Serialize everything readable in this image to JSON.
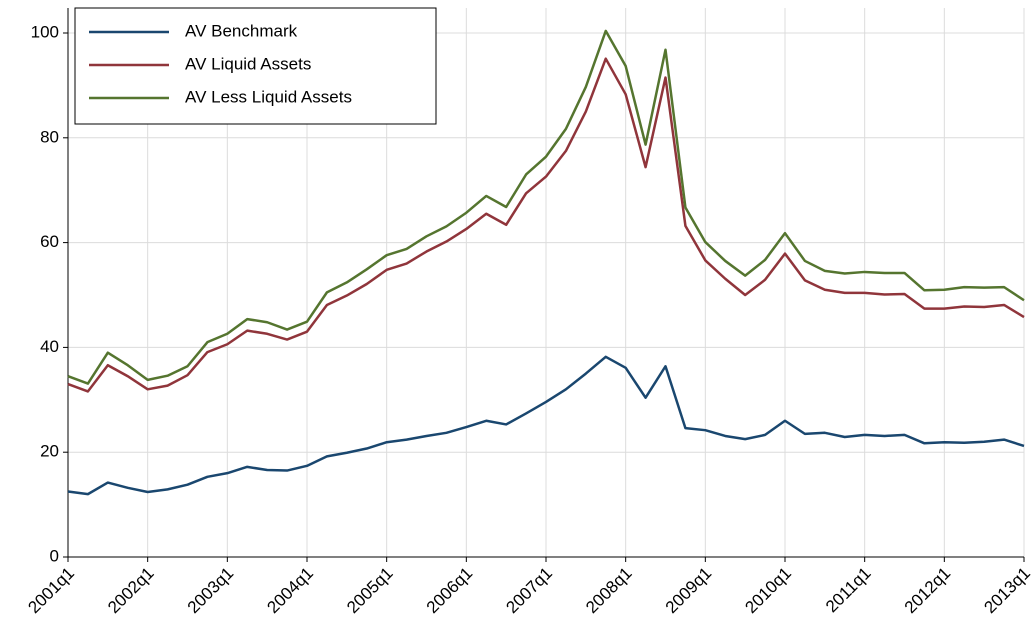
{
  "chart_data": {
    "type": "line",
    "categories": [
      "2001q1",
      null,
      null,
      null,
      "2002q1",
      null,
      null,
      null,
      "2003q1",
      null,
      null,
      null,
      "2004q1",
      null,
      null,
      null,
      "2005q1",
      null,
      null,
      null,
      "2006q1",
      null,
      null,
      null,
      "2007q1",
      null,
      null,
      null,
      "2008q1",
      null,
      null,
      null,
      "2009q1",
      null,
      null,
      null,
      "2010q1",
      null,
      null,
      null,
      "2011q1",
      null,
      null,
      null,
      "2012q1",
      null,
      null,
      null,
      "2013q1"
    ],
    "series": [
      {
        "name": "AV Benchmark",
        "color": "#1a476f",
        "values": [
          12.5,
          12.0,
          14.2,
          13.2,
          12.4,
          12.9,
          13.8,
          15.3,
          16.0,
          17.2,
          16.6,
          16.5,
          17.4,
          19.2,
          19.9,
          20.7,
          21.9,
          22.4,
          23.1,
          23.7,
          24.8,
          26.0,
          25.3,
          27.4,
          29.6,
          32.0,
          35.0,
          38.2,
          36.1,
          30.4,
          36.4,
          24.6,
          24.2,
          23.1,
          22.5,
          23.3,
          26.0,
          23.5,
          23.7,
          22.9,
          23.3,
          23.1,
          23.3,
          21.7,
          21.9,
          21.8,
          22.0,
          22.4,
          21.2
        ]
      },
      {
        "name": "AV Liquid Assets",
        "color": "#90353b",
        "values": [
          33.0,
          31.6,
          36.6,
          34.5,
          32.0,
          32.7,
          34.7,
          39.1,
          40.6,
          43.2,
          42.6,
          41.5,
          43.0,
          48.1,
          49.9,
          52.1,
          54.8,
          56.0,
          58.3,
          60.2,
          62.6,
          65.5,
          63.4,
          69.4,
          72.6,
          77.5,
          85.0,
          95.1,
          88.3,
          74.4,
          91.5,
          63.2,
          56.6,
          53.1,
          50.0,
          52.9,
          57.9,
          52.8,
          51.0,
          50.4,
          50.4,
          50.1,
          50.2,
          47.4,
          47.4,
          47.8,
          47.7,
          48.1,
          45.8
        ]
      },
      {
        "name": "AV Less Liquid Assets",
        "color": "#55752f",
        "values": [
          34.5,
          33.1,
          39.0,
          36.6,
          33.8,
          34.6,
          36.4,
          41.0,
          42.6,
          45.4,
          44.8,
          43.4,
          44.9,
          50.5,
          52.4,
          54.9,
          57.6,
          58.8,
          61.2,
          63.1,
          65.7,
          68.9,
          66.8,
          73.0,
          76.4,
          81.7,
          89.7,
          100.4,
          93.7,
          78.7,
          96.8,
          66.7,
          60.1,
          56.5,
          53.7,
          56.7,
          61.8,
          56.5,
          54.6,
          54.1,
          54.4,
          54.2,
          54.2,
          50.9,
          51.0,
          51.5,
          51.4,
          51.5,
          49.0
        ]
      }
    ],
    "ylim": [
      0,
      100
    ],
    "yticks": [
      0,
      20,
      40,
      60,
      80,
      100
    ],
    "grid": true,
    "legend": "top-left"
  }
}
